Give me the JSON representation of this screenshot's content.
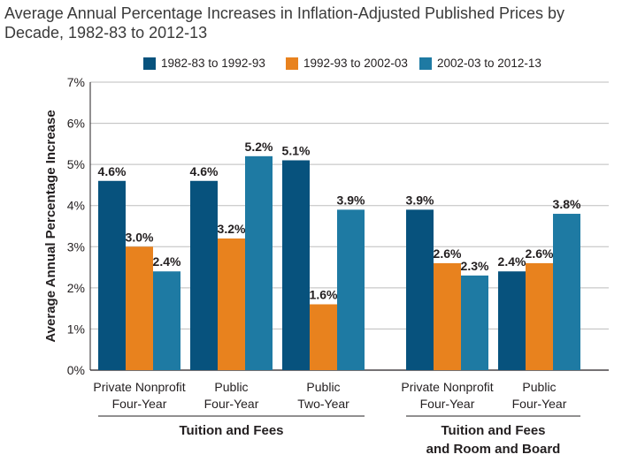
{
  "title": "Average Annual Percentage Increases in Inflation-Adjusted Published Prices by Decade, 1982-83 to 2012-13",
  "colors": {
    "series1": "#07527d",
    "series2": "#e8821e",
    "series3": "#1e7aa3",
    "grid": "#bdbdbd",
    "axis": "#231f20"
  },
  "chart_data": {
    "type": "bar",
    "title": "Average Annual Percentage Increases in Inflation-Adjusted Published Prices by Decade, 1982-83 to 2012-13",
    "ylabel": "Average Annual Percentage Increase",
    "ylim": [
      0,
      7
    ],
    "yticks": [
      "0%",
      "1%",
      "2%",
      "3%",
      "4%",
      "5%",
      "6%",
      "7%"
    ],
    "grid": true,
    "legend_position": "top",
    "categories": [
      {
        "line1": "Private Nonprofit",
        "line2": "Four-Year"
      },
      {
        "line1": "Public",
        "line2": "Four-Year"
      },
      {
        "line1": "Public",
        "line2": "Two-Year"
      },
      {
        "line1": "Private Nonprofit",
        "line2": "Four-Year"
      },
      {
        "line1": "Public",
        "line2": "Four-Year"
      }
    ],
    "groups": [
      {
        "label_line1": "Tuition and Fees",
        "label_line2": "",
        "categories": [
          0,
          1,
          2
        ]
      },
      {
        "label_line1": "Tuition and Fees",
        "label_line2": "and Room and Board",
        "categories": [
          3,
          4
        ]
      }
    ],
    "series": [
      {
        "name": "1982-83 to 1992-93",
        "values": [
          4.6,
          4.6,
          5.1,
          3.9,
          2.4
        ],
        "labels": [
          "4.6%",
          "4.6%",
          "5.1%",
          "3.9%",
          "2.4%"
        ]
      },
      {
        "name": "1992-93 to 2002-03",
        "values": [
          3.0,
          3.2,
          1.6,
          2.6,
          2.6
        ],
        "labels": [
          "3.0%",
          "3.2%",
          "1.6%",
          "2.6%",
          "2.6%"
        ]
      },
      {
        "name": "2002-03 to 2012-13",
        "values": [
          2.4,
          5.2,
          3.9,
          2.3,
          3.8
        ],
        "labels": [
          "2.4%",
          "5.2%",
          "3.9%",
          "2.3%",
          "3.8%"
        ]
      }
    ]
  }
}
